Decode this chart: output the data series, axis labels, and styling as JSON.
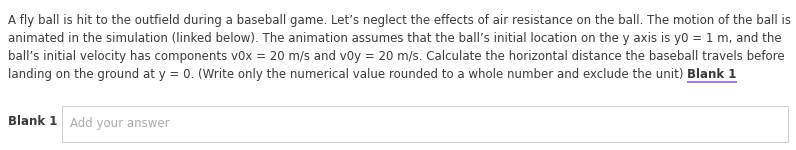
{
  "background_color": "#ffffff",
  "line1": "A fly ball is hit to the outfield during a baseball game. Let’s neglect the effects of air resistance on the ball. The motion of the ball is",
  "line2": "animated in the simulation (linked below). The animation assumes that the ball’s initial location on the y axis is y0 = 1 m, and the",
  "line3": "ball’s initial velocity has components v0x = 20 m/s and v0y = 20 m/s. Calculate the horizontal distance the baseball travels before",
  "line4_normal": "landing on the ground at y = 0. (Write only the numerical value rounded to a whole number and exclude the unit) ",
  "line4_bold": "Blank 1",
  "blank1_underline_color": "#8B5CF6",
  "label_bold": "Blank 1",
  "placeholder_text": "Add your answer",
  "text_color": "#3a3a3a",
  "placeholder_color": "#aaaaaa",
  "font_size": 8.5,
  "label_font_size": 8.5,
  "box_border_color": "#cccccc",
  "box_bg_color": "#ffffff"
}
